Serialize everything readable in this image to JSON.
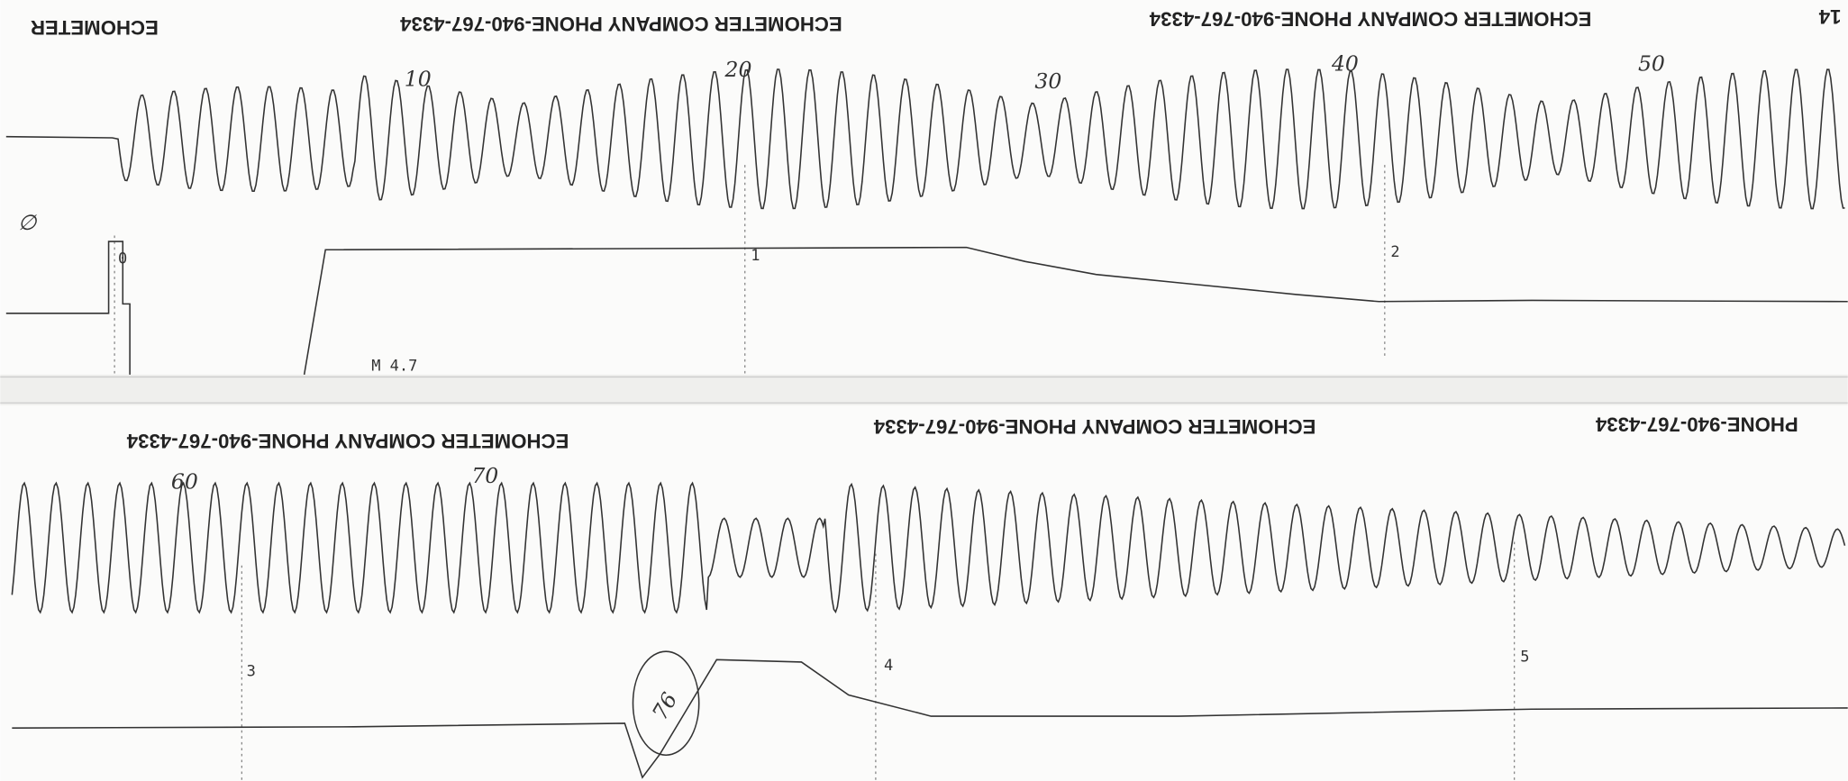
{
  "top_strip": {
    "headers": [
      "ECHOMETER",
      "ECHOMETER COMPANY  PHONE-940-767-4334",
      "ECHOMETER COMPANY  PHONE-940-767-4334",
      "14"
    ],
    "time_marks": [
      "0",
      "1",
      "2"
    ],
    "notes": [
      "∅",
      "10",
      "20",
      "30",
      "40",
      "50",
      "M 4.7"
    ]
  },
  "bottom_strip": {
    "headers": [
      "ECHOMETER COMPANY  PHONE-940-767-4334",
      "ECHOMETER COMPANY  PHONE-940-767-4334",
      "PHONE-940-767-4334"
    ],
    "time_marks": [
      "3",
      "4",
      "5"
    ],
    "notes": [
      "60",
      "70",
      "76"
    ]
  }
}
